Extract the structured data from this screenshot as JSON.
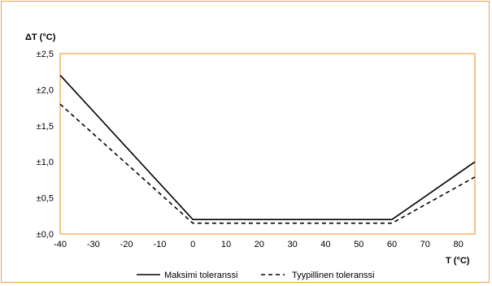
{
  "chart_data": {
    "type": "line",
    "ylabel": "ΔT (°C)",
    "xlabel": "T (°C)",
    "xlim": [
      -40,
      85
    ],
    "ylim": [
      0,
      2.5
    ],
    "x_ticks": [
      -40,
      -30,
      -20,
      -10,
      0,
      10,
      20,
      30,
      40,
      50,
      60,
      70,
      80
    ],
    "x_tick_labels": [
      "-40",
      "-30",
      "-20",
      "-10",
      "0",
      "10",
      "20",
      "30",
      "40",
      "50",
      "60",
      "70",
      "80"
    ],
    "y_ticks": [
      0,
      0.5,
      1.0,
      1.5,
      2.0,
      2.5
    ],
    "y_tick_labels": [
      "±0,0",
      "±0,5",
      "±1,0",
      "±1,5",
      "±2,0",
      "±2,5"
    ],
    "grid": false,
    "legend_position": "bottom",
    "colors": {
      "frame": "#f0a040",
      "plot_border": "#f0a040",
      "line": "#000000"
    },
    "series": [
      {
        "name": "Maksimi toleranssi",
        "style": "solid",
        "x": [
          -40,
          0,
          60,
          85
        ],
        "y": [
          2.2,
          0.2,
          0.2,
          1.0
        ]
      },
      {
        "name": "Tyypillinen toleranssi",
        "style": "dashed",
        "x": [
          -40,
          0,
          60,
          85
        ],
        "y": [
          1.8,
          0.15,
          0.15,
          0.79
        ]
      }
    ]
  }
}
